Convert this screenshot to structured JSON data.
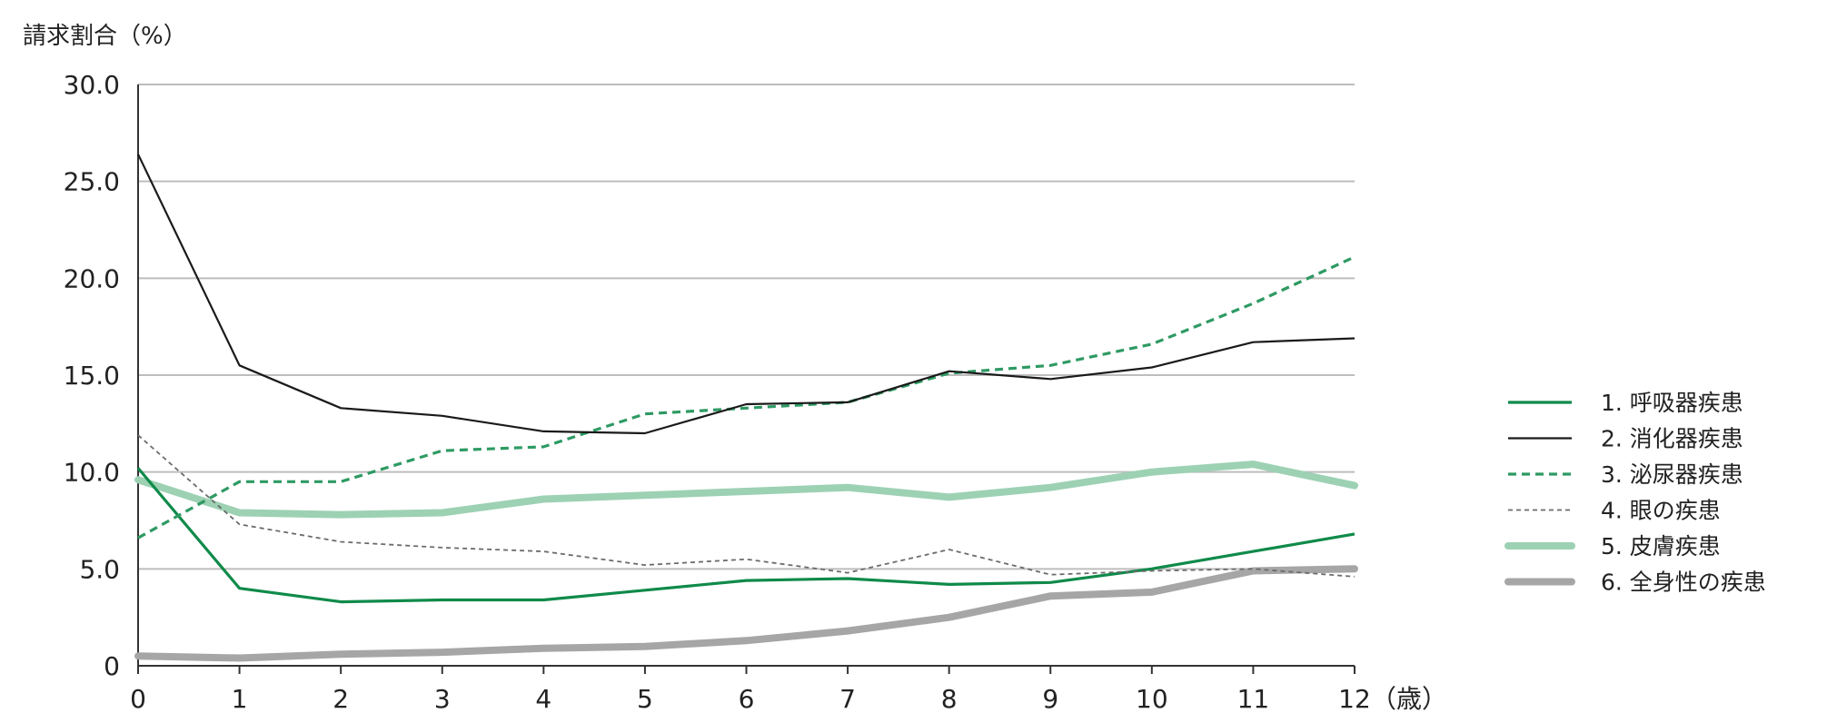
{
  "chart_data": {
    "type": "line",
    "title": "",
    "ylabel": "請求割合（%）",
    "xlabel": "（歳）",
    "x": [
      0,
      1,
      2,
      3,
      4,
      5,
      6,
      7,
      8,
      9,
      10,
      11,
      12
    ],
    "x_tick_labels": [
      "0",
      "1",
      "2",
      "3",
      "4",
      "5",
      "6",
      "7",
      "8",
      "9",
      "10",
      "11",
      "12"
    ],
    "ylim": [
      0,
      30
    ],
    "y_ticks": [
      0,
      5,
      10,
      15,
      20,
      25,
      30
    ],
    "y_tick_labels": [
      "0",
      "5.0",
      "10.0",
      "15.0",
      "20.0",
      "25.0",
      "30.0"
    ],
    "grid": true,
    "legend_position": "right",
    "series": [
      {
        "name": "1.  呼吸器疾患",
        "color": "#0f8a4a",
        "style": "solid-medium",
        "values": [
          10.2,
          4.0,
          3.3,
          3.4,
          3.4,
          3.9,
          4.4,
          4.5,
          4.2,
          4.3,
          5.0,
          5.9,
          6.8
        ]
      },
      {
        "name": "2.  消化器疾患",
        "color": "#1a1a1a",
        "style": "solid-thin",
        "values": [
          26.4,
          15.5,
          13.3,
          12.9,
          12.1,
          12.0,
          13.5,
          13.6,
          15.2,
          14.8,
          15.4,
          16.7,
          16.9
        ]
      },
      {
        "name": "3.  泌尿器疾患",
        "color": "#2e9a63",
        "style": "dashed",
        "values": [
          6.6,
          9.5,
          9.5,
          11.1,
          11.3,
          13.0,
          13.3,
          13.6,
          15.1,
          15.5,
          16.6,
          18.7,
          21.1
        ]
      },
      {
        "name": "4.  眼の疾患",
        "color": "#6b6b6b",
        "style": "dotted-thin",
        "values": [
          11.9,
          7.3,
          6.4,
          6.1,
          5.9,
          5.2,
          5.5,
          4.8,
          6.0,
          4.7,
          4.9,
          5.0,
          4.6
        ]
      },
      {
        "name": "5.  皮膚疾患",
        "color": "#9dd1b3",
        "style": "thick",
        "values": [
          9.6,
          7.9,
          7.8,
          7.9,
          8.6,
          8.8,
          9.0,
          9.2,
          8.7,
          9.2,
          10.0,
          10.4,
          9.3
        ]
      },
      {
        "name": "6.  全身性の疾患",
        "color": "#a6a6a6",
        "style": "thick",
        "values": [
          0.5,
          0.4,
          0.6,
          0.7,
          0.9,
          1.0,
          1.3,
          1.8,
          2.5,
          3.6,
          3.8,
          4.9,
          5.0
        ]
      }
    ]
  }
}
